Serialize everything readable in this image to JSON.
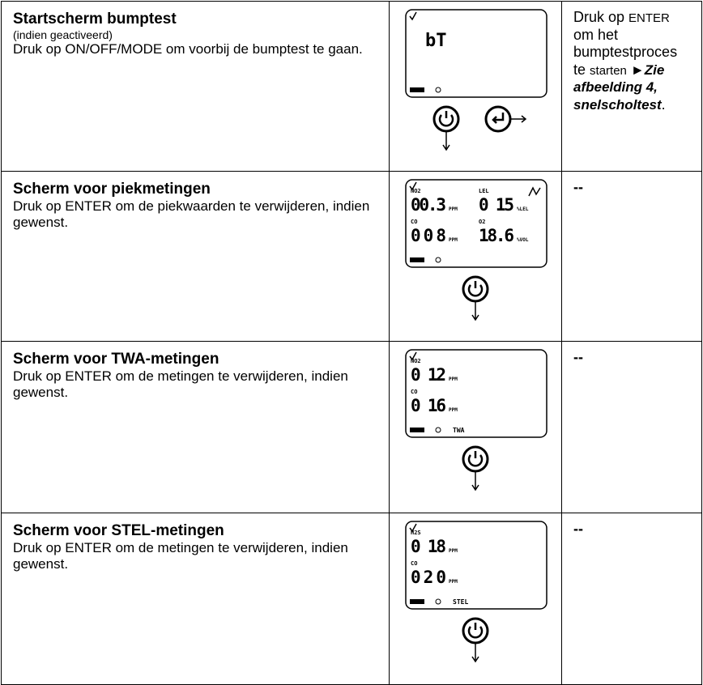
{
  "table": {
    "rows": [
      {
        "title": "Startscherm bumptest",
        "note": "(indien geactiveerd)",
        "text": "Druk op ON/OFF/MODE om voorbij de bumptest te gaan.",
        "screen": {
          "big": "bT"
        },
        "action": [
          "Druk op",
          "ENTER",
          "om het bumptestproces te",
          "starten",
          "►Zie afbeelding 4, snelscholtest",
          "."
        ]
      },
      {
        "title": "Scherm voor piekmetingen",
        "text": "Druk op ENTER om de piekwaarden te verwijderen, indien gewenst.",
        "screen": {
          "readings": [
            {
              "label": "NO2",
              "value": "00.3",
              "unit": "PPM"
            },
            {
              "label": "LEL",
              "value": "0 15",
              "unit": "%LEL"
            },
            {
              "label": "CO",
              "value": "008",
              "unit": "PPM"
            },
            {
              "label": "O2",
              "value": "18.6",
              "unit": "%VOL"
            }
          ]
        },
        "action": [
          "--"
        ]
      },
      {
        "title": "Scherm voor TWA-metingen",
        "text": "Druk op ENTER om de metingen te verwijderen, indien gewenst.",
        "screen": {
          "readings": [
            {
              "label": "NO2",
              "value": "0 12",
              "unit": "PPM"
            },
            {
              "label": "CO",
              "value": "0 16",
              "unit": "PPM"
            }
          ],
          "mode": "TWA"
        },
        "action": [
          "--"
        ]
      },
      {
        "title": "Scherm voor STEL-metingen",
        "text": "Druk op ENTER om de metingen te verwijderen, indien gewenst.",
        "screen": {
          "readings": [
            {
              "label": "H2S",
              "value": "0 18",
              "unit": "PPM"
            },
            {
              "label": "CO",
              "value": "020",
              "unit": "PPM"
            }
          ],
          "mode": "STEL"
        },
        "action": [
          "--"
        ]
      }
    ]
  }
}
